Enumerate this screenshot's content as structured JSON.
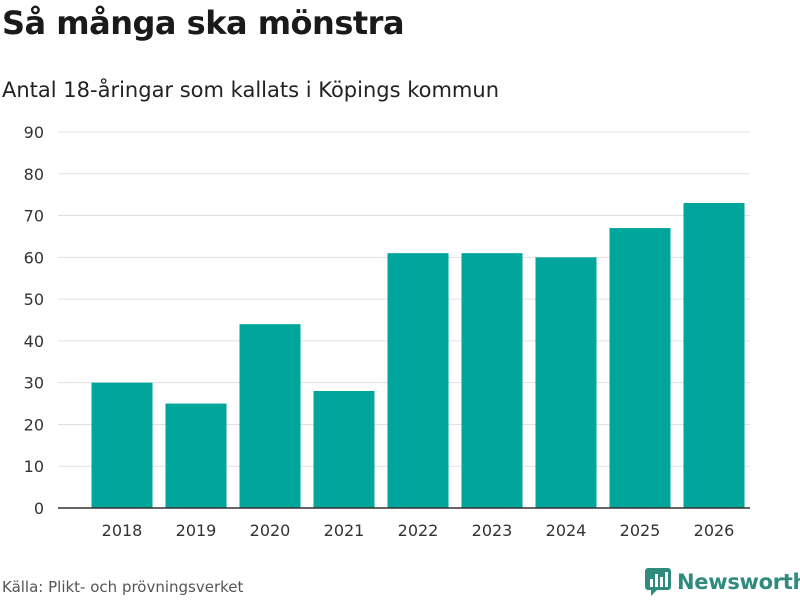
{
  "title": "Så många ska mönstra",
  "subtitle": "Antal 18-åringar som kallats i Köpings kommun",
  "source": "Källa: Plikt- och prövningsverket",
  "brand": {
    "name": "Newsworthy",
    "icon": "bar-chart-logo-icon",
    "color": "#2e8b7e"
  },
  "colors": {
    "bar": "#00a59b",
    "grid": "#e0e0e0",
    "axis": "#333333"
  },
  "chart_data": {
    "type": "bar",
    "title": "Så många ska mönstra",
    "subtitle": "Antal 18-åringar som kallats i Köpings kommun",
    "xlabel": "",
    "ylabel": "",
    "categories": [
      "2018",
      "2019",
      "2020",
      "2021",
      "2022",
      "2023",
      "2024",
      "2025",
      "2026"
    ],
    "values": [
      30,
      25,
      44,
      28,
      61,
      61,
      60,
      67,
      73
    ],
    "ylim": [
      0,
      90
    ],
    "yticks": [
      0,
      10,
      20,
      30,
      40,
      50,
      60,
      70,
      80,
      90
    ],
    "grid": true,
    "legend": "none"
  }
}
